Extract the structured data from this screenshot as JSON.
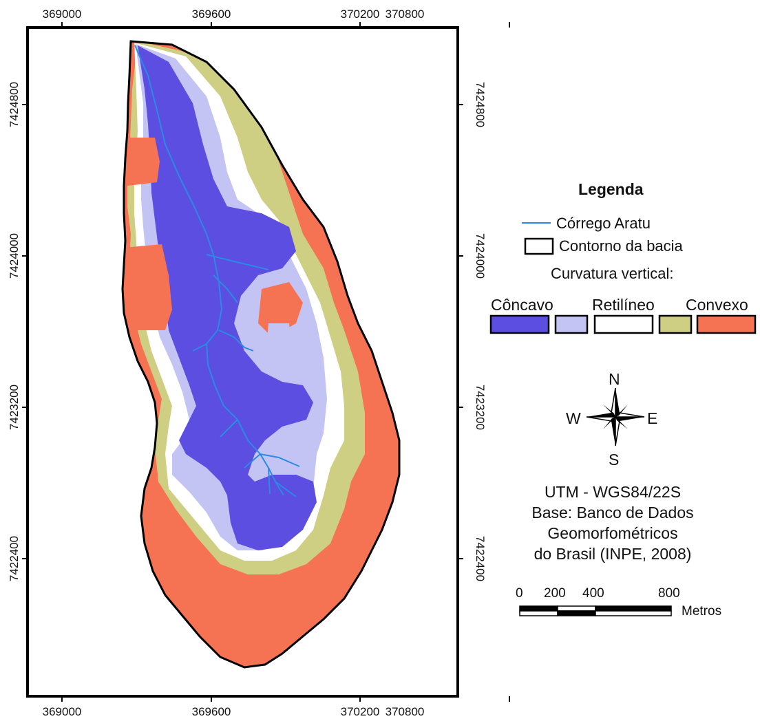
{
  "map": {
    "x_ticks": [
      "369000",
      "369600",
      "370200",
      "370800"
    ],
    "y_ticks": [
      "7424800",
      "7424000",
      "7423200",
      "7422400"
    ]
  },
  "legend": {
    "title": "Legenda",
    "stream_label": "Córrego Aratu",
    "boundary_label": "Contorno da bacia",
    "curvature_title": "Curvatura vertical:",
    "class_labels": {
      "concave": "Côncavo",
      "rectilinear": "Retilíneo",
      "convex": "Convexo"
    },
    "class_colors": [
      "#5b4ee0",
      "#c4c4f4",
      "#ffffff",
      "#cfcf84",
      "#f57352"
    ]
  },
  "colors": {
    "concave": "#5b4ee0",
    "slightly_concave": "#c4c4f4",
    "rectilinear": "#ffffff",
    "slightly_convex": "#cfcf84",
    "convex": "#f57352",
    "stream": "#2a8ae6",
    "boundary": "#000000"
  },
  "compass": {
    "north": "N",
    "south": "S",
    "east": "E",
    "west": "W"
  },
  "projection": {
    "line1": "UTM - WGS84/22S",
    "line2": "Base: Banco de Dados",
    "line3": "Geomorfométricos",
    "line4": "do Brasil (INPE, 2008)"
  },
  "scale_bar": {
    "labels": [
      "0",
      "200",
      "400",
      "800"
    ],
    "unit": "Metros"
  }
}
